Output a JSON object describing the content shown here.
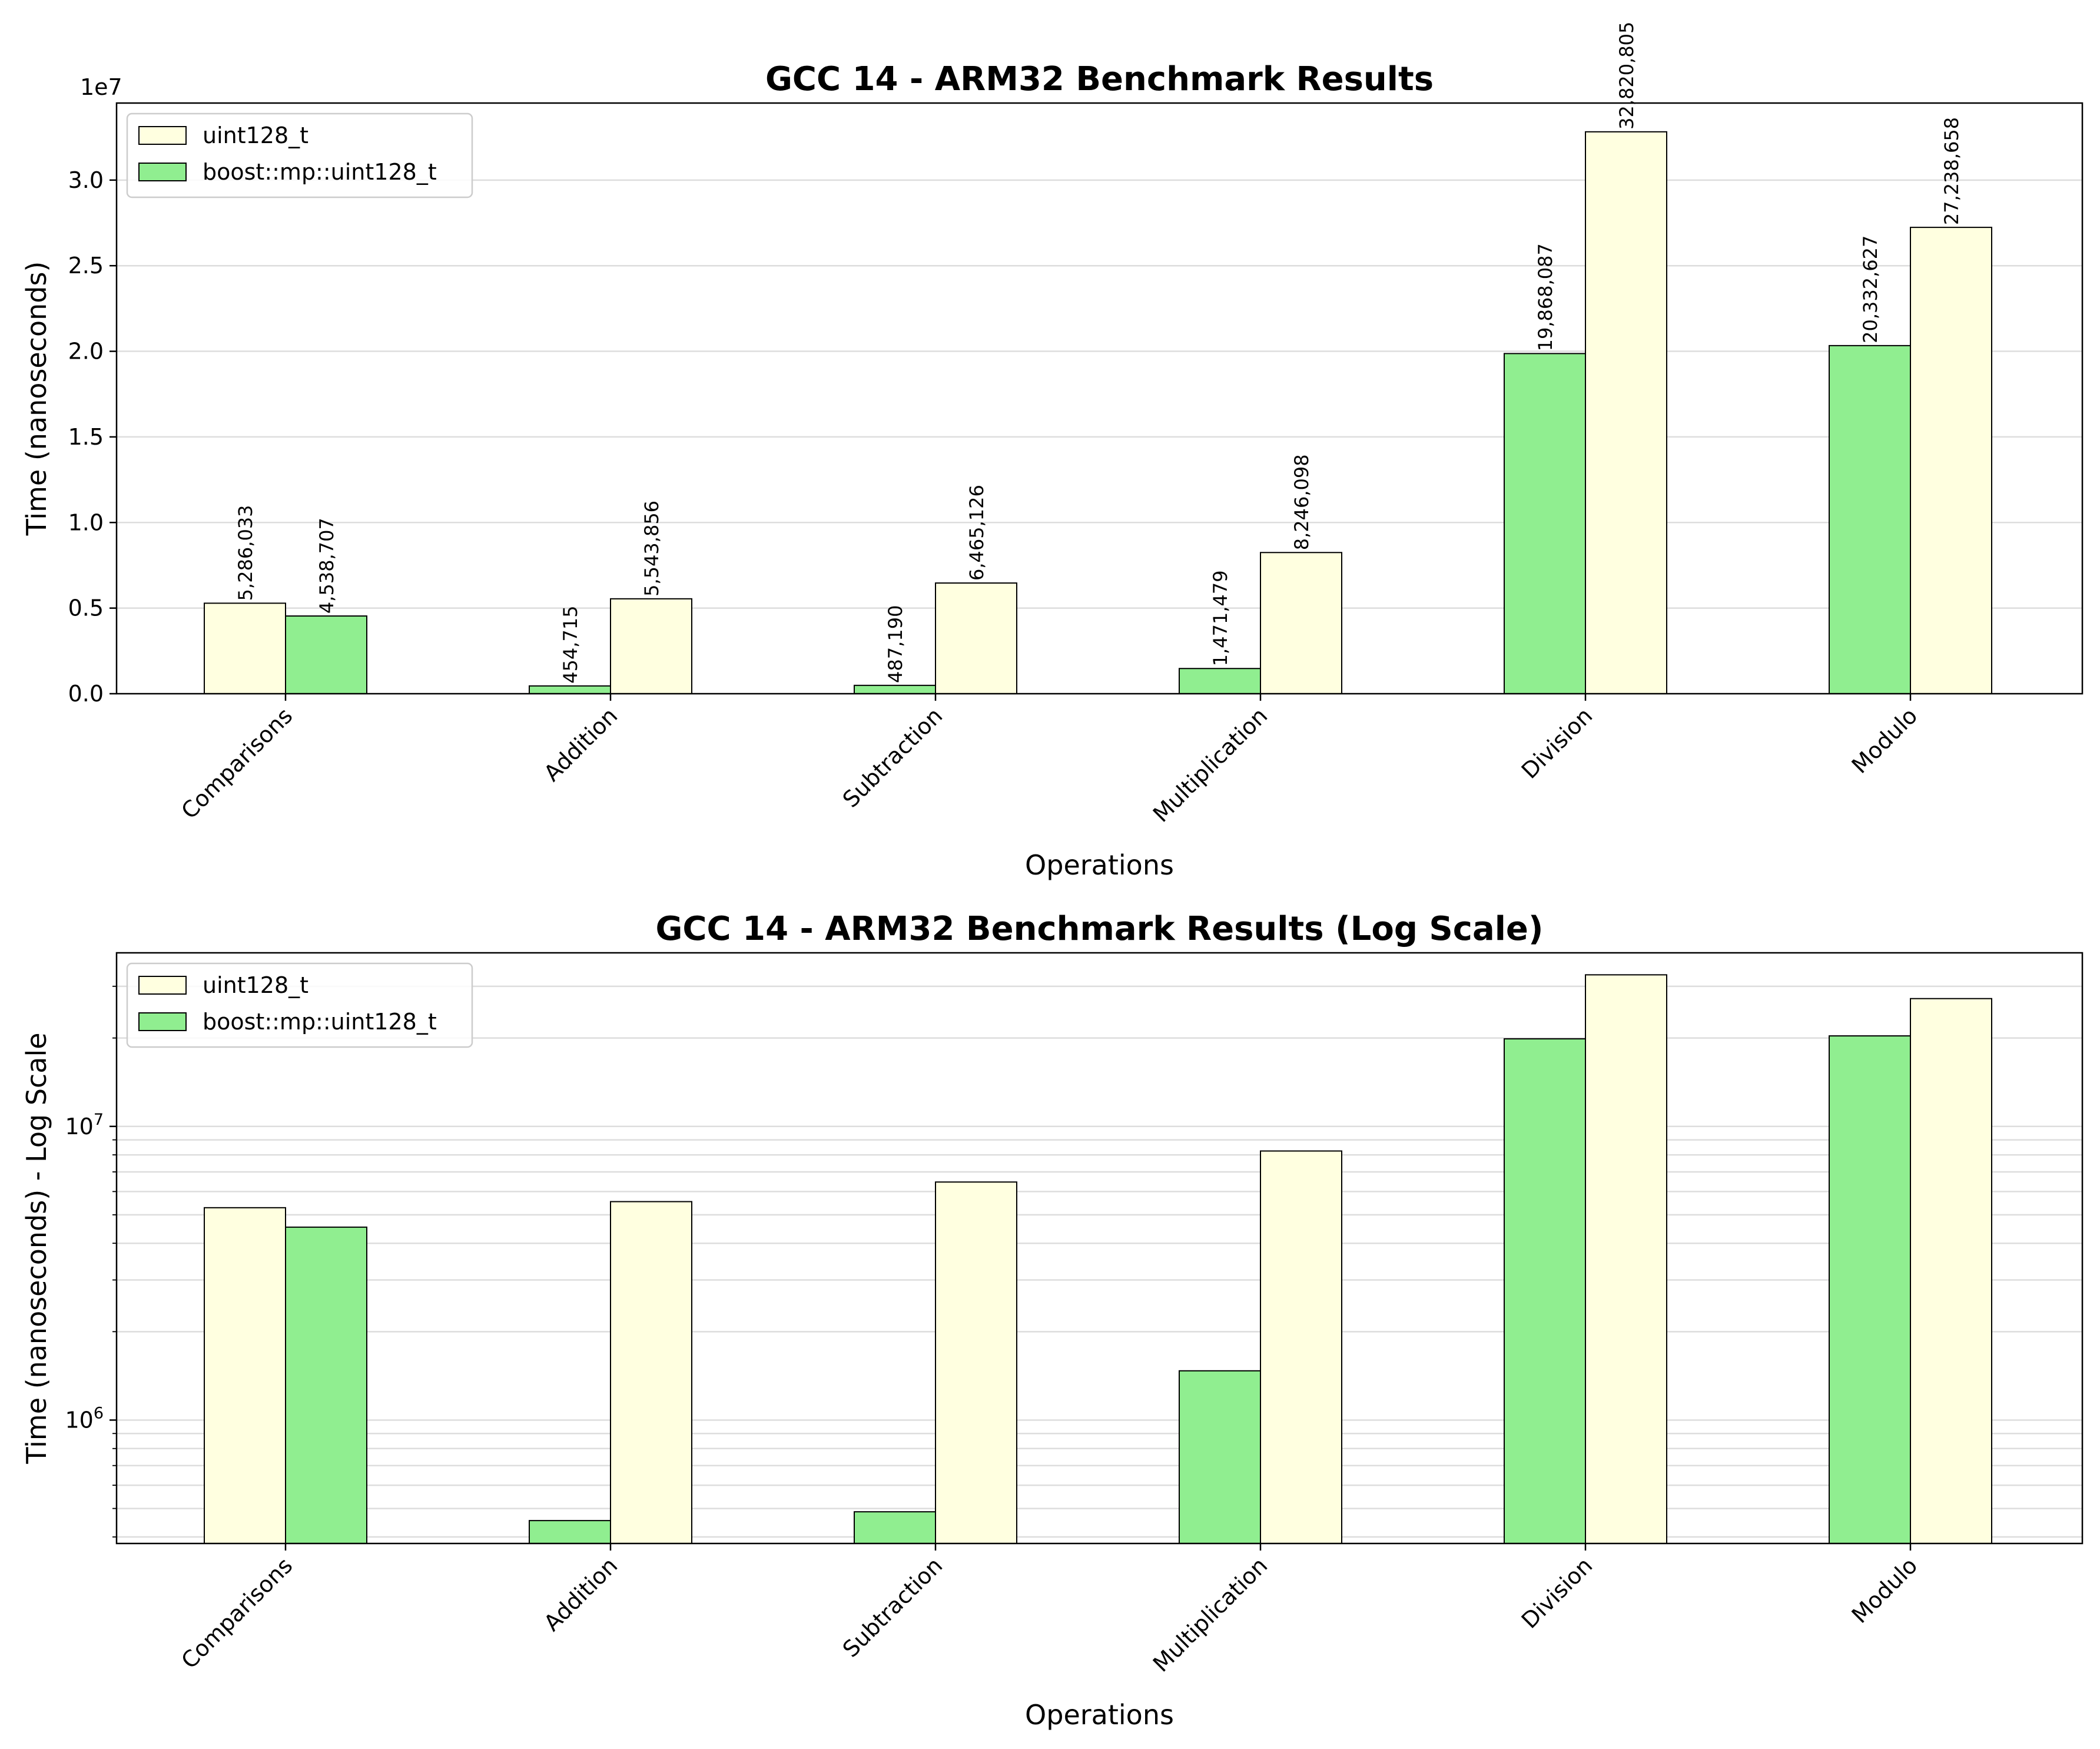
{
  "figure_title": "",
  "colors": {
    "uint128_t": "#ffffe0",
    "boost::mp::uint128_t": "#90ee90",
    "edge": "#000000",
    "grid": "#dddddd"
  },
  "chart_data": [
    {
      "type": "bar",
      "title": "GCC 14 - ARM32 Benchmark Results",
      "xlabel": "Operations",
      "ylabel": "Time (nanoseconds)",
      "y_scale": "linear",
      "y_offset_label": "1e7",
      "yticks": [
        0,
        5000000,
        10000000,
        15000000,
        20000000,
        25000000,
        30000000
      ],
      "ytick_labels": [
        "0.0",
        "0.5",
        "1.0",
        "1.5",
        "2.0",
        "2.5",
        "3.0"
      ],
      "ylim": [
        0,
        34500000
      ],
      "grid": "horizontal",
      "legend": "top-left",
      "show_data_labels": true,
      "categories": [
        "Comparisons",
        "Addition",
        "Subtraction",
        "Multiplication",
        "Division",
        "Modulo"
      ],
      "series": [
        {
          "name": "uint128_t",
          "values": [
            5286033,
            5543856,
            6465126,
            8246098,
            32820805,
            27238658
          ]
        },
        {
          "name": "boost::mp::uint128_t",
          "values": [
            4538707,
            454715,
            487190,
            1471479,
            19868087,
            20332627
          ]
        }
      ],
      "data_labels": {
        "uint128_t": [
          "5,286,033",
          "5,543,856",
          "6,465,126",
          "8,246,098",
          "32,820,805",
          "27,238,658"
        ],
        "boost::mp::uint128_t": [
          "4,538,707",
          "454,715",
          "487,190",
          "1,471,479",
          "19,868,087",
          "20,332,627"
        ]
      }
    },
    {
      "type": "bar",
      "title": "GCC 14 - ARM32 Benchmark Results (Log Scale)",
      "xlabel": "Operations",
      "ylabel": "Time (nanoseconds) - Log Scale",
      "y_scale": "log",
      "ylim": [
        380000,
        39000000
      ],
      "yticks": [
        1000000,
        10000000
      ],
      "ytick_labels": [
        {
          "base": "10",
          "exp": "6"
        },
        {
          "base": "10",
          "exp": "7"
        }
      ],
      "grid": "horizontal (major and minor)",
      "legend": "top-left",
      "show_data_labels": false,
      "categories": [
        "Comparisons",
        "Addition",
        "Subtraction",
        "Multiplication",
        "Division",
        "Modulo"
      ],
      "series": [
        {
          "name": "uint128_t",
          "values": [
            5286033,
            5543856,
            6465126,
            8246098,
            32820805,
            27238658
          ]
        },
        {
          "name": "boost::mp::uint128_t",
          "values": [
            4538707,
            454715,
            487190,
            1471479,
            19868087,
            20332627
          ]
        }
      ]
    }
  ]
}
